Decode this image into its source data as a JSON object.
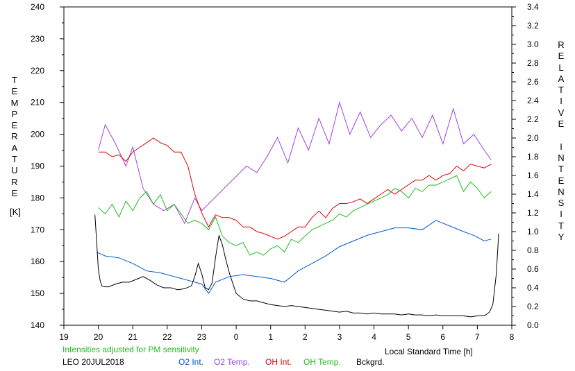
{
  "chart_data": {
    "type": "line",
    "xlabel": "Local Standard Time [h]",
    "ylabel_left": "TEMPERATURE",
    "ylabel_left_unit": "[K]",
    "ylabel_right": "RELATIVE INTENSITY",
    "note": "Intensities adjusted for PM sensitivity",
    "station_date": "LEO 20JUL2018",
    "x_range": [
      19,
      32
    ],
    "x_tick_labels": [
      "19",
      "20",
      "21",
      "22",
      "23",
      "0",
      "1",
      "2",
      "3",
      "4",
      "5",
      "6",
      "7",
      "8"
    ],
    "y_left_range": [
      140,
      240
    ],
    "y_left_ticks": [
      "140",
      "150",
      "160",
      "170",
      "180",
      "190",
      "200",
      "210",
      "220",
      "230",
      "240"
    ],
    "y_right_range": [
      0,
      3.4
    ],
    "y_right_ticks": [
      "0.0",
      "0.2",
      "0.4",
      "0.6",
      "0.8",
      "1.0",
      "1.2",
      "1.4",
      "1.6",
      "1.8",
      "2.0",
      "2.2",
      "2.4",
      "2.6",
      "2.8",
      "3.0",
      "3.2",
      "3.4"
    ],
    "grid": false,
    "legend_placement": "bottom",
    "series": [
      {
        "name": "O2 Int.",
        "axis": "right",
        "color": "#0055cc",
        "x": [
          19.95,
          20.2,
          20.6,
          21.0,
          21.4,
          21.8,
          22.2,
          22.6,
          23.0,
          23.2,
          23.4,
          23.8,
          24.2,
          24.6,
          25.0,
          25.4,
          25.8,
          26.2,
          26.6,
          27.0,
          27.4,
          27.8,
          28.2,
          28.6,
          29.0,
          29.4,
          29.8,
          30.2,
          30.6,
          30.9,
          31.2,
          31.4
        ],
        "y": [
          0.78,
          0.74,
          0.72,
          0.66,
          0.58,
          0.56,
          0.52,
          0.48,
          0.44,
          0.34,
          0.46,
          0.52,
          0.54,
          0.52,
          0.5,
          0.46,
          0.58,
          0.66,
          0.74,
          0.84,
          0.9,
          0.96,
          1.0,
          1.04,
          1.04,
          1.02,
          1.12,
          1.06,
          1.0,
          0.96,
          0.9,
          0.92
        ]
      },
      {
        "name": "O2 Temp.",
        "axis": "left",
        "color": "#a040e0",
        "x": [
          20.0,
          20.2,
          20.5,
          20.8,
          21.0,
          21.3,
          21.6,
          21.9,
          22.2,
          22.5,
          22.8,
          23.0,
          24.3,
          24.6,
          24.9,
          25.2,
          25.5,
          25.8,
          26.1,
          26.4,
          26.7,
          27.0,
          27.3,
          27.6,
          27.9,
          28.2,
          28.5,
          28.8,
          29.1,
          29.4,
          29.7,
          30.0,
          30.3,
          30.6,
          30.9,
          31.2,
          31.4
        ],
        "y": [
          195,
          203,
          197,
          190,
          196,
          183,
          178,
          176,
          178,
          172,
          180,
          176,
          190,
          188,
          193,
          199,
          191,
          202,
          195,
          205,
          197,
          210,
          200,
          207,
          199,
          203,
          206,
          201,
          205,
          199,
          206,
          197,
          208,
          197,
          200,
          195,
          192
        ]
      },
      {
        "name": "OH Int.",
        "axis": "right",
        "color": "#dd0000",
        "x": [
          20.0,
          20.2,
          20.4,
          20.6,
          20.8,
          21.0,
          21.2,
          21.4,
          21.6,
          21.8,
          22.0,
          22.2,
          22.4,
          22.6,
          22.8,
          23.0,
          23.2,
          23.4,
          23.6,
          23.8,
          24.0,
          24.2,
          24.4,
          24.6,
          24.8,
          25.0,
          25.2,
          25.4,
          25.6,
          25.8,
          26.0,
          26.2,
          26.4,
          26.6,
          26.8,
          27.0,
          27.2,
          27.4,
          27.6,
          27.8,
          28.0,
          28.2,
          28.4,
          28.6,
          28.8,
          29.0,
          29.2,
          29.4,
          29.6,
          29.8,
          30.0,
          30.2,
          30.4,
          30.6,
          30.8,
          31.0,
          31.2,
          31.4
        ],
        "y": [
          1.85,
          1.85,
          1.8,
          1.82,
          1.75,
          1.85,
          1.9,
          1.95,
          2.0,
          1.95,
          1.92,
          1.85,
          1.85,
          1.7,
          1.4,
          1.2,
          1.05,
          1.18,
          1.15,
          1.15,
          1.12,
          1.05,
          1.05,
          1.0,
          0.98,
          0.95,
          0.92,
          0.95,
          1.0,
          1.05,
          1.05,
          1.15,
          1.22,
          1.15,
          1.25,
          1.3,
          1.3,
          1.32,
          1.35,
          1.3,
          1.35,
          1.4,
          1.45,
          1.4,
          1.45,
          1.5,
          1.55,
          1.55,
          1.6,
          1.55,
          1.6,
          1.62,
          1.7,
          1.65,
          1.72,
          1.7,
          1.68,
          1.72
        ]
      },
      {
        "name": "OH Temp.",
        "axis": "left",
        "color": "#22bb22",
        "x": [
          20.0,
          20.2,
          20.4,
          20.6,
          20.8,
          21.0,
          21.2,
          21.4,
          21.6,
          21.8,
          22.0,
          22.2,
          22.4,
          22.6,
          22.8,
          23.0,
          23.2,
          23.4,
          23.6,
          23.8,
          24.0,
          24.2,
          24.4,
          24.6,
          24.8,
          25.0,
          25.2,
          25.4,
          25.6,
          25.8,
          26.0,
          26.2,
          26.4,
          26.6,
          26.8,
          27.0,
          27.2,
          27.4,
          27.6,
          27.8,
          28.0,
          28.2,
          28.4,
          28.6,
          28.8,
          29.0,
          29.2,
          29.4,
          29.6,
          29.8,
          30.0,
          30.2,
          30.4,
          30.6,
          30.8,
          31.0,
          31.2,
          31.4
        ],
        "y": [
          177,
          175,
          178,
          174,
          179,
          176,
          180,
          182,
          178,
          181,
          176,
          178,
          175,
          172,
          173,
          172,
          170,
          174,
          168,
          166,
          165,
          166,
          162,
          163,
          162,
          164,
          165,
          163,
          167,
          166,
          168,
          170,
          171,
          172,
          173,
          175,
          174,
          176,
          177,
          178,
          179,
          180,
          181,
          183,
          182,
          180,
          183,
          182,
          184,
          184,
          185,
          186,
          187,
          182,
          185,
          183,
          180,
          182
        ]
      },
      {
        "name": "Bckgrd.",
        "axis": "right",
        "color": "#000000",
        "x": [
          19.9,
          19.95,
          20.0,
          20.05,
          20.1,
          20.2,
          20.3,
          20.5,
          20.7,
          20.9,
          21.1,
          21.3,
          21.5,
          21.7,
          21.9,
          22.1,
          22.3,
          22.5,
          22.7,
          22.8,
          22.9,
          23.0,
          23.1,
          23.2,
          23.3,
          23.4,
          23.5,
          23.6,
          23.7,
          23.8,
          23.9,
          24.0,
          24.2,
          24.4,
          24.6,
          24.8,
          25.0,
          25.2,
          25.4,
          25.6,
          25.8,
          26.0,
          26.2,
          26.4,
          26.6,
          26.8,
          27.0,
          27.2,
          27.4,
          27.6,
          27.8,
          28.0,
          28.2,
          28.4,
          28.6,
          28.8,
          29.0,
          29.2,
          29.4,
          29.6,
          29.8,
          30.0,
          30.2,
          30.4,
          30.6,
          30.8,
          31.0,
          31.2,
          31.35,
          31.45,
          31.55,
          31.62
        ],
        "y": [
          1.18,
          0.9,
          0.6,
          0.48,
          0.42,
          0.41,
          0.41,
          0.44,
          0.46,
          0.46,
          0.49,
          0.52,
          0.48,
          0.43,
          0.4,
          0.4,
          0.38,
          0.39,
          0.42,
          0.52,
          0.66,
          0.55,
          0.4,
          0.38,
          0.45,
          0.72,
          0.96,
          0.86,
          0.7,
          0.56,
          0.45,
          0.34,
          0.28,
          0.26,
          0.26,
          0.24,
          0.22,
          0.21,
          0.2,
          0.21,
          0.2,
          0.19,
          0.18,
          0.17,
          0.16,
          0.15,
          0.14,
          0.15,
          0.13,
          0.13,
          0.12,
          0.13,
          0.12,
          0.12,
          0.12,
          0.11,
          0.12,
          0.11,
          0.11,
          0.1,
          0.11,
          0.1,
          0.1,
          0.1,
          0.1,
          0.09,
          0.1,
          0.1,
          0.14,
          0.22,
          0.55,
          0.98
        ]
      }
    ]
  }
}
